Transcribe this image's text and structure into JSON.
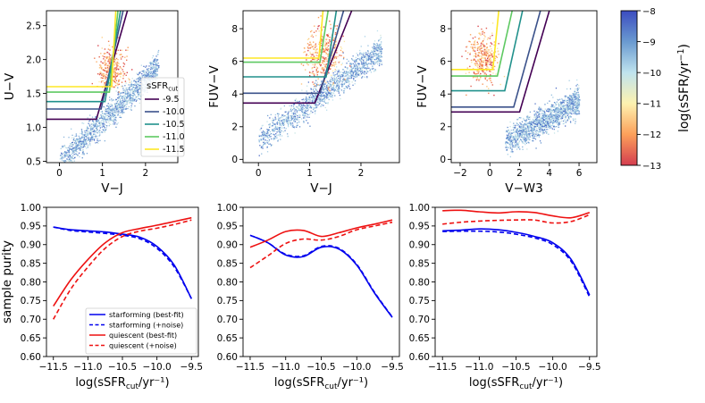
{
  "chart_data": [
    {
      "type": "scatter",
      "panel": "top-left",
      "xlabel": "V−J",
      "ylabel": "U−V",
      "xlim": [
        -0.3,
        2.75
      ],
      "ylim": [
        0.48,
        2.72
      ],
      "xticks": [
        0,
        1,
        2
      ],
      "xtick_labels": [
        "0",
        "1",
        "2"
      ],
      "yticks": [
        0.5,
        1.0,
        1.5,
        2.0,
        2.5
      ],
      "ytick_labels": [
        "0.5",
        "1.0",
        "1.5",
        "2.0",
        "2.5"
      ],
      "cloud": {
        "x_range": [
          0.0,
          2.3
        ],
        "slope": 0.62,
        "intercept": 0.48
      },
      "legend": {
        "title": "sSFR",
        "title_sub": "cut",
        "placement": "lower-right",
        "entries": [
          "-9.5",
          "-10.0",
          "-10.5",
          "-11.0",
          "-11.5"
        ]
      },
      "selection_boxes": [
        {
          "label": "-9.5",
          "color": "#440154",
          "floor": 1.12,
          "corner_x": 0.86,
          "top_x": 1.58
        },
        {
          "label": "-10.0",
          "color": "#3b528b",
          "floor": 1.27,
          "corner_x": 0.97,
          "top_x": 1.48
        },
        {
          "label": "-10.5",
          "color": "#21918c",
          "floor": 1.38,
          "corner_x": 1.06,
          "top_x": 1.42
        },
        {
          "label": "-11.0",
          "color": "#5ec962",
          "floor": 1.52,
          "corner_x": 1.16,
          "top_x": 1.36
        },
        {
          "label": "-11.5",
          "color": "#fde725",
          "floor": 1.6,
          "corner_x": 1.21,
          "top_x": 1.31
        }
      ]
    },
    {
      "type": "scatter",
      "panel": "top-middle",
      "xlabel": "V−J",
      "ylabel": "FUV−V",
      "xlim": [
        -0.3,
        2.75
      ],
      "ylim": [
        -0.2,
        9.1
      ],
      "xticks": [
        0,
        1,
        2
      ],
      "xtick_labels": [
        "0",
        "1",
        "2"
      ],
      "yticks": [
        0,
        2,
        4,
        6,
        8
      ],
      "ytick_labels": [
        "0",
        "2",
        "4",
        "6",
        "8"
      ],
      "cloud": {
        "x_range": [
          0.0,
          2.4
        ],
        "slope": 2.3,
        "intercept": 1.2
      },
      "selection_boxes": [
        {
          "label": "-9.5",
          "color": "#440154",
          "floor": 3.45,
          "corner_x": 1.1,
          "top_x": 1.82
        },
        {
          "label": "-10.0",
          "color": "#3b528b",
          "floor": 4.05,
          "corner_x": 1.2,
          "top_x": 1.66
        },
        {
          "label": "-10.5",
          "color": "#21918c",
          "floor": 5.05,
          "corner_x": 1.32,
          "top_x": 1.52
        },
        {
          "label": "-11.0",
          "color": "#5ec962",
          "floor": 5.95,
          "corner_x": 1.2,
          "top_x": 1.36
        },
        {
          "label": "-11.5",
          "color": "#fde725",
          "floor": 6.2,
          "corner_x": 1.18,
          "top_x": 1.26
        }
      ]
    },
    {
      "type": "scatter",
      "panel": "top-right",
      "xlabel": "V−W3",
      "ylabel": "FUV−V",
      "xlim": [
        -2.6,
        7.2
      ],
      "ylim": [
        -0.2,
        9.1
      ],
      "xticks": [
        -2,
        0,
        2,
        4,
        6
      ],
      "xtick_labels": [
        "−2",
        "0",
        "2",
        "4",
        "6"
      ],
      "yticks": [
        0,
        2,
        4,
        6,
        8
      ],
      "ytick_labels": [
        "0",
        "2",
        "4",
        "6",
        "8"
      ],
      "cloud": {
        "x_range": [
          1.0,
          6.0
        ],
        "slope": 0.5,
        "intercept": 0.6
      },
      "selection_boxes": [
        {
          "label": "-9.5",
          "color": "#440154",
          "floor": 2.9,
          "corner_x": 2.0,
          "top_x": 4.0
        },
        {
          "label": "-10.0",
          "color": "#3b528b",
          "floor": 3.2,
          "corner_x": 1.6,
          "top_x": 3.4
        },
        {
          "label": "-10.5",
          "color": "#21918c",
          "floor": 4.2,
          "corner_x": 1.0,
          "top_x": 2.2
        },
        {
          "label": "-11.0",
          "color": "#5ec962",
          "floor": 5.1,
          "corner_x": 0.5,
          "top_x": 1.5
        },
        {
          "label": "-11.5",
          "color": "#fde725",
          "floor": 5.5,
          "corner_x": 0.2,
          "top_x": 0.6
        }
      ]
    },
    {
      "type": "line",
      "panel": "bottom-left",
      "xlabel_main": "log(sSFR",
      "xlabel_sub": "cut",
      "xlabel_tail": "/yr⁻¹)",
      "ylabel": "sample purity",
      "xlim": [
        -11.6,
        -9.4
      ],
      "ylim": [
        0.6,
        1.0
      ],
      "xticks": [
        -11.5,
        -11.0,
        -10.5,
        -10.0,
        -9.5
      ],
      "xtick_labels": [
        "−11.5",
        "−11.0",
        "−10.5",
        "−10.0",
        "−9.5"
      ],
      "yticks": [
        0.6,
        0.65,
        0.7,
        0.75,
        0.8,
        0.85,
        0.9,
        0.95,
        1.0
      ],
      "ytick_labels": [
        "0.60",
        "0.65",
        "0.70",
        "0.75",
        "0.80",
        "0.85",
        "0.90",
        "0.95",
        "1.00"
      ],
      "x": [
        -11.5,
        -11.25,
        -11.0,
        -10.75,
        -10.5,
        -10.25,
        -10.0,
        -9.75,
        -9.5
      ],
      "series": [
        {
          "name": "starforming (best-fit)",
          "color": "#0000ee",
          "dash": false,
          "values": [
            0.947,
            0.94,
            0.937,
            0.934,
            0.928,
            0.92,
            0.895,
            0.845,
            0.755
          ]
        },
        {
          "name": "starforming (+noise)",
          "color": "#0000ee",
          "dash": true,
          "values": [
            0.947,
            0.938,
            0.934,
            0.93,
            0.925,
            0.916,
            0.89,
            0.84,
            0.755
          ]
        },
        {
          "name": "quiescent (best-fit)",
          "color": "#ee1111",
          "dash": false,
          "values": [
            0.735,
            0.805,
            0.86,
            0.905,
            0.932,
            0.943,
            0.952,
            0.962,
            0.972
          ]
        },
        {
          "name": "quiescent (+noise)",
          "color": "#ee1111",
          "dash": true,
          "values": [
            0.7,
            0.78,
            0.84,
            0.89,
            0.922,
            0.936,
            0.944,
            0.954,
            0.966
          ]
        }
      ],
      "legend_placement": "lower-right"
    },
    {
      "type": "line",
      "panel": "bottom-middle",
      "xlabel_main": "log(sSFR",
      "xlabel_sub": "cut",
      "xlabel_tail": "/yr⁻¹)",
      "xlim": [
        -11.6,
        -9.4
      ],
      "ylim": [
        0.6,
        1.0
      ],
      "xticks": [
        -11.5,
        -11.0,
        -10.5,
        -10.0,
        -9.5
      ],
      "xtick_labels": [
        "−11.5",
        "−11.0",
        "−10.5",
        "−10.0",
        "−9.5"
      ],
      "yticks": [
        0.6,
        0.65,
        0.7,
        0.75,
        0.8,
        0.85,
        0.9,
        0.95,
        1.0
      ],
      "ytick_labels": [
        "0.60",
        "0.65",
        "0.70",
        "0.75",
        "0.80",
        "0.85",
        "0.90",
        "0.95",
        "1.00"
      ],
      "x": [
        -11.5,
        -11.25,
        -11.0,
        -10.75,
        -10.5,
        -10.25,
        -10.0,
        -9.75,
        -9.5
      ],
      "series": [
        {
          "name": "starforming (best-fit)",
          "color": "#0000ee",
          "dash": false,
          "values": [
            0.925,
            0.905,
            0.872,
            0.868,
            0.893,
            0.888,
            0.845,
            0.77,
            0.705
          ]
        },
        {
          "name": "starforming (+noise)",
          "color": "#0000ee",
          "dash": true,
          "values": [
            0.925,
            0.905,
            0.874,
            0.87,
            0.895,
            0.89,
            0.847,
            0.772,
            0.706
          ]
        },
        {
          "name": "quiescent (best-fit)",
          "color": "#ee1111",
          "dash": false,
          "values": [
            0.893,
            0.912,
            0.935,
            0.938,
            0.922,
            0.932,
            0.945,
            0.955,
            0.966
          ]
        },
        {
          "name": "quiescent (+noise)",
          "color": "#ee1111",
          "dash": true,
          "values": [
            0.838,
            0.87,
            0.903,
            0.915,
            0.912,
            0.922,
            0.94,
            0.95,
            0.96
          ]
        }
      ]
    },
    {
      "type": "line",
      "panel": "bottom-right",
      "xlabel_main": "log(sSFR",
      "xlabel_sub": "cut",
      "xlabel_tail": "/yr⁻¹)",
      "xlim": [
        -11.6,
        -9.4
      ],
      "ylim": [
        0.6,
        1.0
      ],
      "xticks": [
        -11.5,
        -11.0,
        -10.5,
        -10.0,
        -9.5
      ],
      "xtick_labels": [
        "−11.5",
        "−11.0",
        "−10.5",
        "−10.0",
        "−9.5"
      ],
      "yticks": [
        0.6,
        0.65,
        0.7,
        0.75,
        0.8,
        0.85,
        0.9,
        0.95,
        1.0
      ],
      "ytick_labels": [
        "0.60",
        "0.65",
        "0.70",
        "0.75",
        "0.80",
        "0.85",
        "0.90",
        "0.95",
        "1.00"
      ],
      "x": [
        -11.5,
        -11.25,
        -11.0,
        -10.75,
        -10.5,
        -10.25,
        -10.0,
        -9.75,
        -9.5
      ],
      "series": [
        {
          "name": "starforming (best-fit)",
          "color": "#0000ee",
          "dash": false,
          "values": [
            0.937,
            0.939,
            0.942,
            0.94,
            0.933,
            0.922,
            0.905,
            0.86,
            0.765
          ]
        },
        {
          "name": "starforming (+noise)",
          "color": "#0000ee",
          "dash": true,
          "values": [
            0.935,
            0.936,
            0.936,
            0.934,
            0.928,
            0.918,
            0.9,
            0.855,
            0.76
          ]
        },
        {
          "name": "quiescent (best-fit)",
          "color": "#ee1111",
          "dash": false,
          "values": [
            0.991,
            0.992,
            0.988,
            0.985,
            0.988,
            0.986,
            0.977,
            0.972,
            0.986
          ]
        },
        {
          "name": "quiescent (+noise)",
          "color": "#ee1111",
          "dash": true,
          "values": [
            0.955,
            0.96,
            0.963,
            0.965,
            0.966,
            0.966,
            0.958,
            0.962,
            0.98
          ]
        }
      ]
    }
  ],
  "colorbar": {
    "label_main": "log(sSFR/yr",
    "label_sup": "−1",
    "label_tail": ")",
    "range": [
      -13,
      -8
    ],
    "ticks": [
      -8,
      -9,
      -10,
      -11,
      -12,
      -13
    ],
    "tick_labels": [
      "−8",
      "−9",
      "−10",
      "−11",
      "−12",
      "−13"
    ],
    "colormap": "RdYlBu",
    "stops": [
      "#3b4cc0",
      "#6a9ad0",
      "#bfe3ee",
      "#fdf2b0",
      "#fca05a",
      "#d43d4f"
    ]
  }
}
